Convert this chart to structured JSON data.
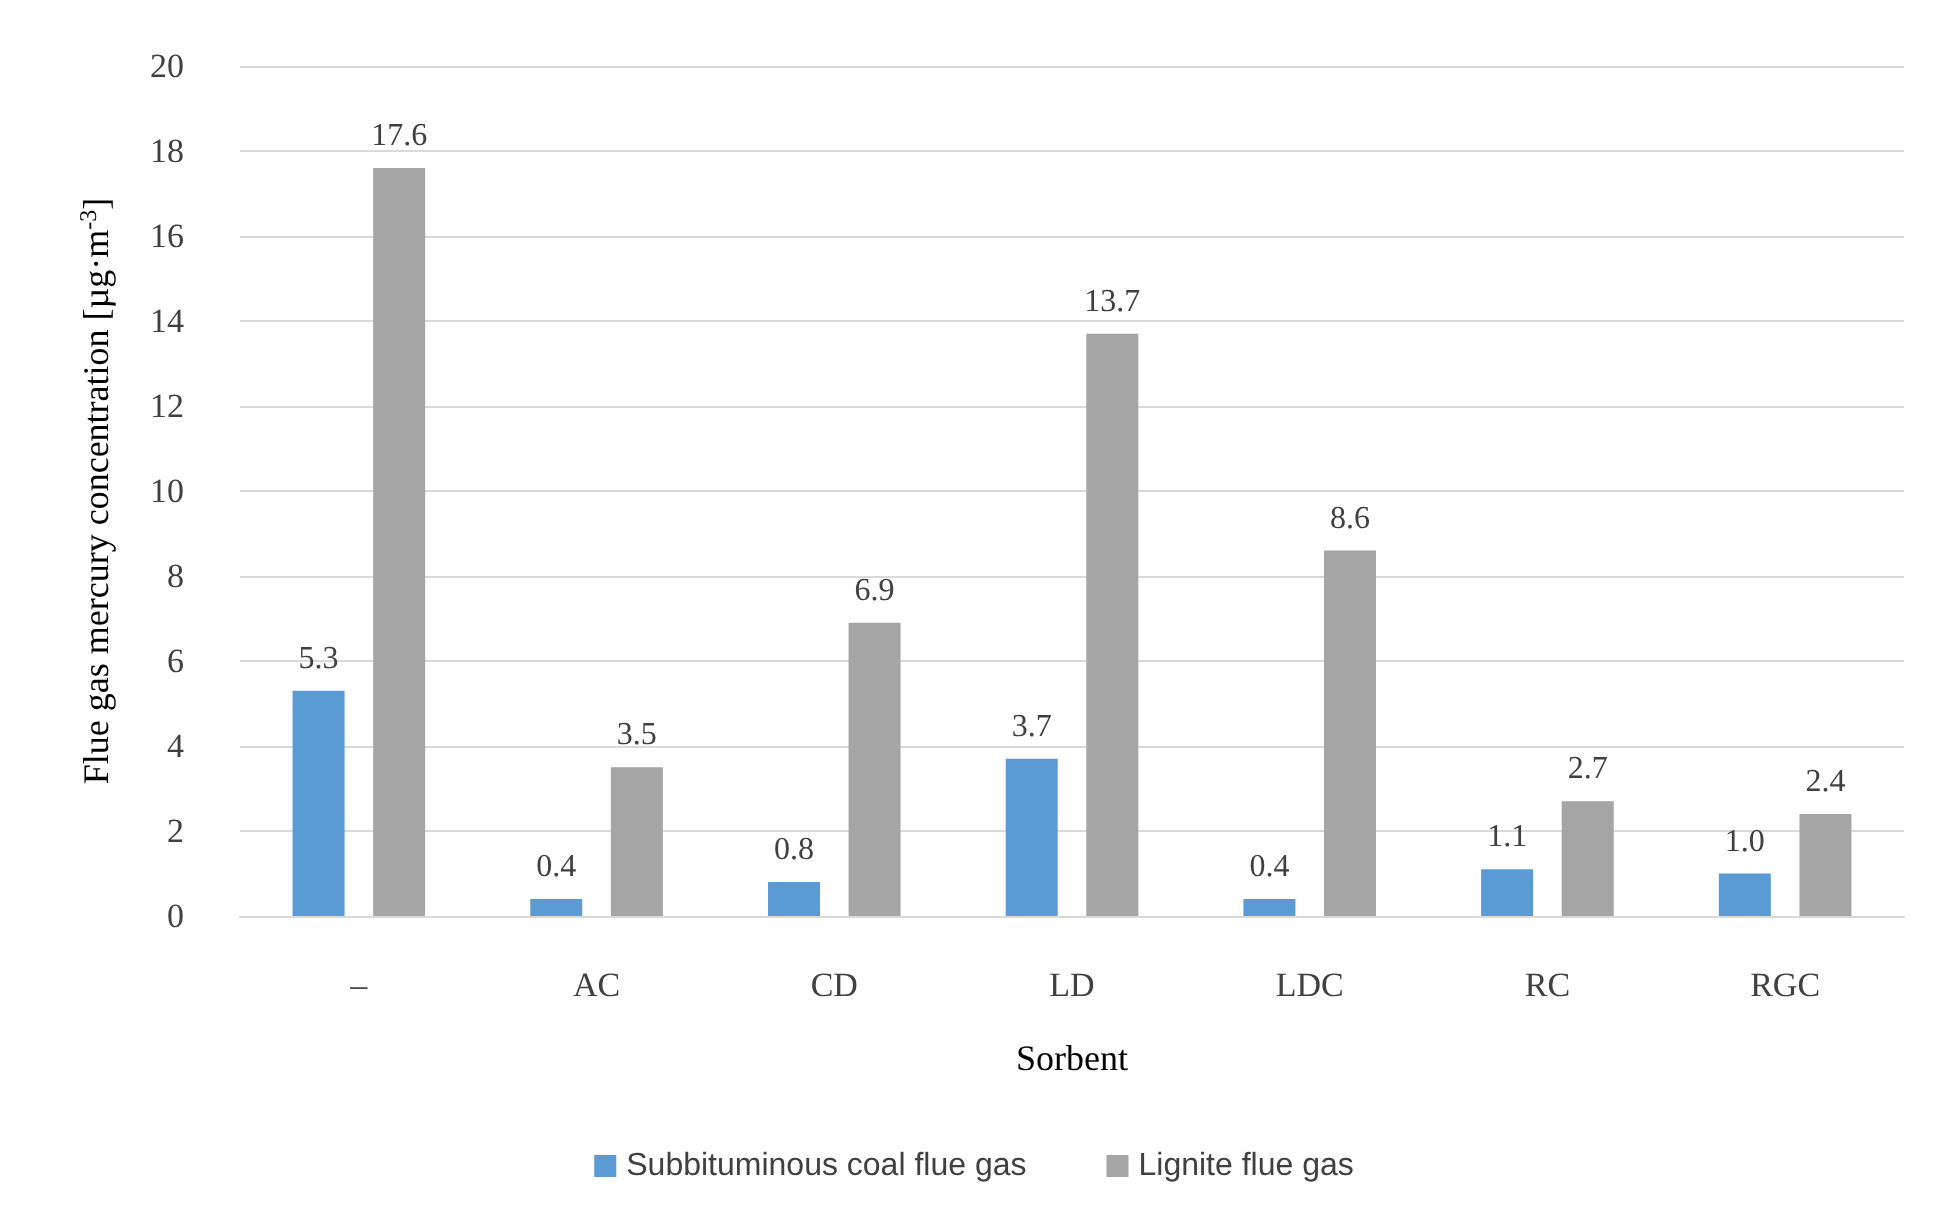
{
  "chart_data": {
    "type": "bar",
    "xlabel": "Sorbent",
    "ylabel": "Flue gas mercury concentration [µg·m$^{-3}$]",
    "categories": [
      "–",
      "AC",
      "CD",
      "LD",
      "LDC",
      "RC",
      "RGC"
    ],
    "series": [
      {
        "name": "Subbituminous coal flue gas",
        "color": "#5b9bd5",
        "values": [
          5.3,
          0.4,
          0.8,
          3.7,
          0.4,
          1.1,
          1.0
        ],
        "value_labels": [
          "5.3",
          "0.4",
          "0.8",
          "3.7",
          "0.4",
          "1.1",
          "1.0"
        ]
      },
      {
        "name": "Lignite flue gas",
        "color": "#a5a5a5",
        "values": [
          17.6,
          3.5,
          6.9,
          13.7,
          8.6,
          2.7,
          2.4
        ],
        "value_labels": [
          "17.6",
          "3.5",
          "6.9",
          "13.7",
          "8.6",
          "2.7",
          "2.4"
        ]
      }
    ],
    "ylim": [
      0,
      20
    ],
    "yticks": [
      0,
      2,
      4,
      6,
      8,
      10,
      12,
      14,
      16,
      18,
      20
    ],
    "grid": "y",
    "legend": "bottom"
  }
}
